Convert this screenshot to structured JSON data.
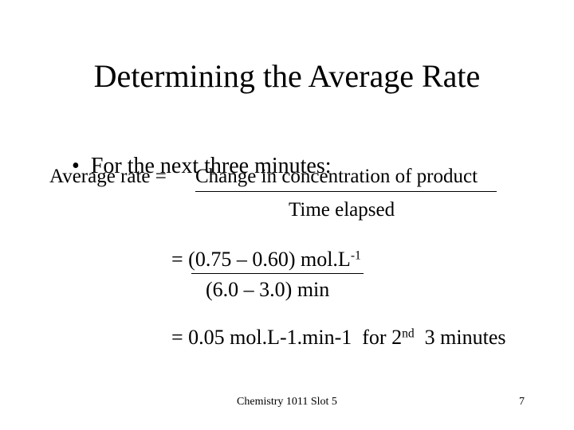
{
  "title": "Determining the Average Rate",
  "bullet": {
    "marker": "•",
    "text": "For the next three minutes:"
  },
  "equation1": {
    "lhs": "Average rate = ",
    "numerator": "Change in concentration of product",
    "denominator": "Time elapsed"
  },
  "equation2": {
    "numerator": "= (0.75 – 0.60) mol.L",
    "numerator_sup": "-1",
    "denominator": "(6.0 – 3.0) min"
  },
  "result": {
    "text": "= 0.05 mol.L-1.min-1  for 2",
    "sup": "nd",
    "tail": "  3 minutes"
  },
  "footer": {
    "course": "Chemistry 1011 Slot 5",
    "page": "7"
  }
}
